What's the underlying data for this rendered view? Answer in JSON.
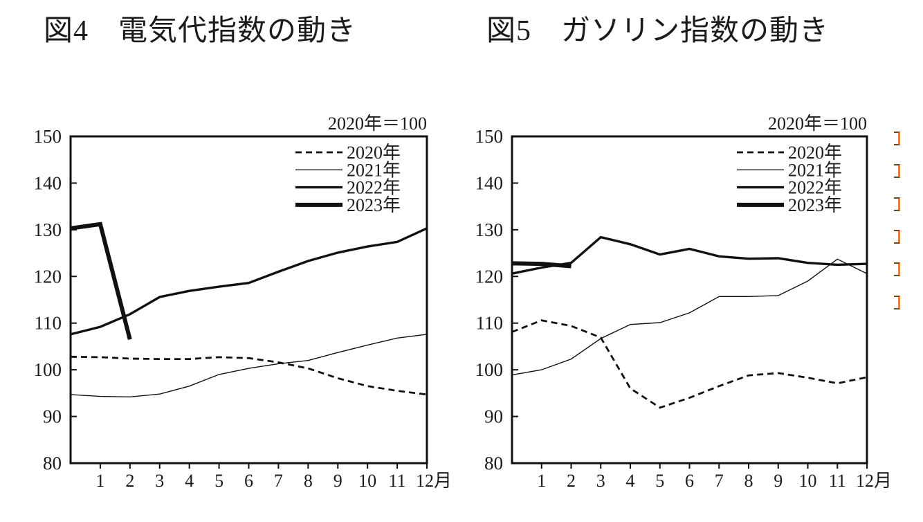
{
  "chart_data": [
    {
      "type": "line",
      "title": "図4　電気代指数の動き",
      "unit_note": "2020年＝100",
      "ylim": [
        80,
        150
      ],
      "yticks": [
        80,
        90,
        100,
        110,
        120,
        130,
        140,
        150
      ],
      "x_tick_labels": [
        "1",
        "2",
        "3",
        "4",
        "5",
        "6",
        "7",
        "8",
        "9",
        "10",
        "11",
        "12月"
      ],
      "grid": false,
      "legend_position": "top-right-inside",
      "legend": [
        "2020年",
        "2021年",
        "2022年",
        "2023年"
      ],
      "series": [
        {
          "name": "2020年",
          "line_style": "dashed",
          "x": [
            0,
            1,
            2,
            3,
            4,
            5,
            6,
            7,
            8,
            9,
            10,
            11,
            12
          ],
          "values": [
            102.8,
            102.7,
            102.4,
            102.3,
            102.3,
            102.7,
            102.5,
            101.6,
            100.3,
            98.2,
            96.5,
            95.5,
            94.7
          ]
        },
        {
          "name": "2021年",
          "line_style": "thin",
          "x": [
            0,
            1,
            2,
            3,
            4,
            5,
            6,
            7,
            8,
            9,
            10,
            11,
            12
          ],
          "values": [
            94.7,
            94.3,
            94.2,
            94.8,
            96.5,
            99.0,
            100.3,
            101.3,
            102.0,
            103.7,
            105.3,
            106.8,
            107.6
          ]
        },
        {
          "name": "2022年",
          "line_style": "thick",
          "x": [
            0,
            1,
            2,
            3,
            4,
            5,
            6,
            7,
            8,
            9,
            10,
            11,
            12
          ],
          "values": [
            107.6,
            109.2,
            111.9,
            115.6,
            116.9,
            117.8,
            118.6,
            121.0,
            123.3,
            125.1,
            126.4,
            127.4,
            130.3
          ]
        },
        {
          "name": "2023年",
          "line_style": "heavy",
          "x": [
            0,
            1,
            2
          ],
          "values": [
            130.3,
            131.2,
            106.5
          ]
        }
      ]
    },
    {
      "type": "line",
      "title": "図5　ガソリン指数の動き",
      "unit_note": "2020年＝100",
      "ylim": [
        80,
        150
      ],
      "yticks": [
        80,
        90,
        100,
        110,
        120,
        130,
        140,
        150
      ],
      "x_tick_labels": [
        "1",
        "2",
        "3",
        "4",
        "5",
        "6",
        "7",
        "8",
        "9",
        "10",
        "11",
        "12月"
      ],
      "grid": false,
      "legend_position": "top-right-inside",
      "legend": [
        "2020年",
        "2021年",
        "2022年",
        "2023年"
      ],
      "series": [
        {
          "name": "2020年",
          "line_style": "dashed",
          "x": [
            0,
            1,
            2,
            3,
            4,
            5,
            6,
            7,
            8,
            9,
            10,
            11,
            12
          ],
          "values": [
            108.1,
            110.6,
            109.4,
            106.9,
            96.0,
            91.9,
            94.0,
            96.5,
            98.8,
            99.3,
            98.3,
            97.1,
            98.4
          ]
        },
        {
          "name": "2021年",
          "line_style": "thin",
          "x": [
            0,
            1,
            2,
            3,
            4,
            5,
            6,
            7,
            8,
            9,
            10,
            11,
            12
          ],
          "values": [
            98.9,
            100.0,
            102.3,
            106.7,
            109.7,
            110.1,
            112.2,
            115.7,
            115.7,
            115.9,
            119.0,
            123.7,
            120.6
          ]
        },
        {
          "name": "2022年",
          "line_style": "thick",
          "x": [
            0,
            1,
            2,
            3,
            4,
            5,
            6,
            7,
            8,
            9,
            10,
            11,
            12
          ],
          "values": [
            120.6,
            121.9,
            122.9,
            128.4,
            126.9,
            124.7,
            125.9,
            124.3,
            123.8,
            123.9,
            122.9,
            122.5,
            122.7
          ]
        },
        {
          "name": "2023年",
          "line_style": "heavy",
          "x": [
            0,
            1,
            2
          ],
          "values": [
            122.8,
            122.7,
            122.2
          ]
        }
      ]
    }
  ],
  "right_edge_marks": {
    "glyph": "]",
    "count": 6,
    "color": "#e0813f"
  },
  "colors": {
    "line": "#111111",
    "text": "#1b1b1b",
    "background": "#ffffff"
  }
}
